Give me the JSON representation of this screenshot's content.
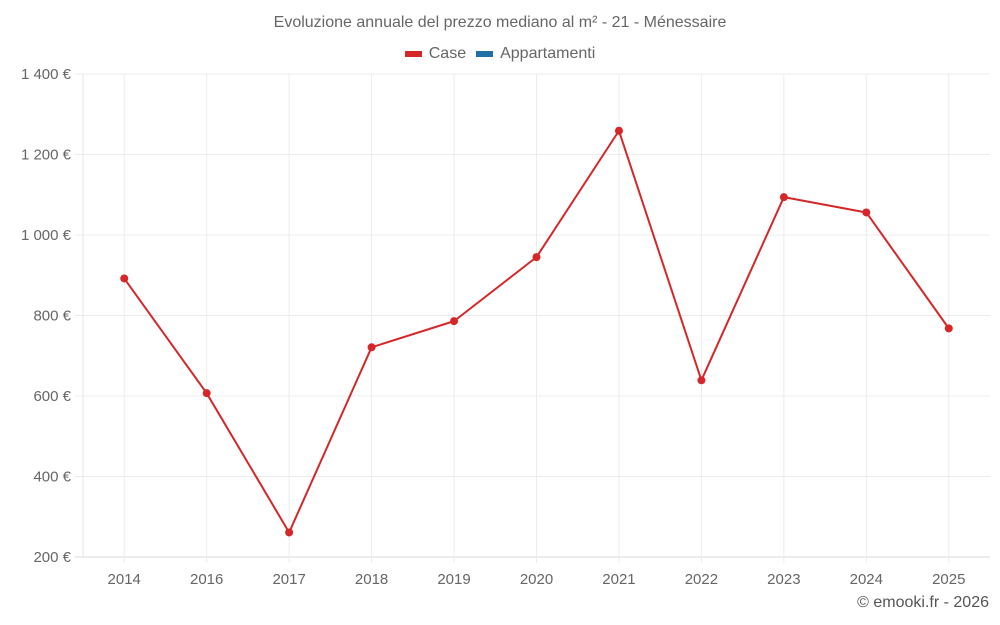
{
  "chart_data": {
    "type": "line",
    "title": "Evoluzione annuale del prezzo mediano al m² - 21 - Ménessaire",
    "xlabel": "",
    "ylabel": "",
    "categories": [
      "2014",
      "2016",
      "2017",
      "2018",
      "2019",
      "2020",
      "2021",
      "2022",
      "2023",
      "2024",
      "2025"
    ],
    "series": [
      {
        "name": "Case",
        "color": "#d62728",
        "values": [
          892,
          607,
          261,
          721,
          786,
          945,
          1259,
          639,
          1094,
          1056,
          768
        ]
      },
      {
        "name": "Appartamenti",
        "color": "#1f6fa8",
        "values": []
      }
    ],
    "ylim": [
      200,
      1400
    ],
    "yticks": [
      200,
      400,
      600,
      800,
      1000,
      1200,
      1400
    ],
    "ytick_labels": [
      "200 €",
      "400 €",
      "600 €",
      "800 €",
      "1 000 €",
      "1 200 €",
      "1 400 €"
    ],
    "grid": true,
    "legend_position": "top"
  },
  "header": {
    "title": "Evoluzione annuale del prezzo mediano al m² - 21 - Ménessaire"
  },
  "legend": {
    "items": [
      {
        "label": "Case",
        "color": "#d62728"
      },
      {
        "label": "Appartamenti",
        "color": "#1f6fa8"
      }
    ]
  },
  "footer": {
    "credit": "© emooki.fr - 2026"
  }
}
